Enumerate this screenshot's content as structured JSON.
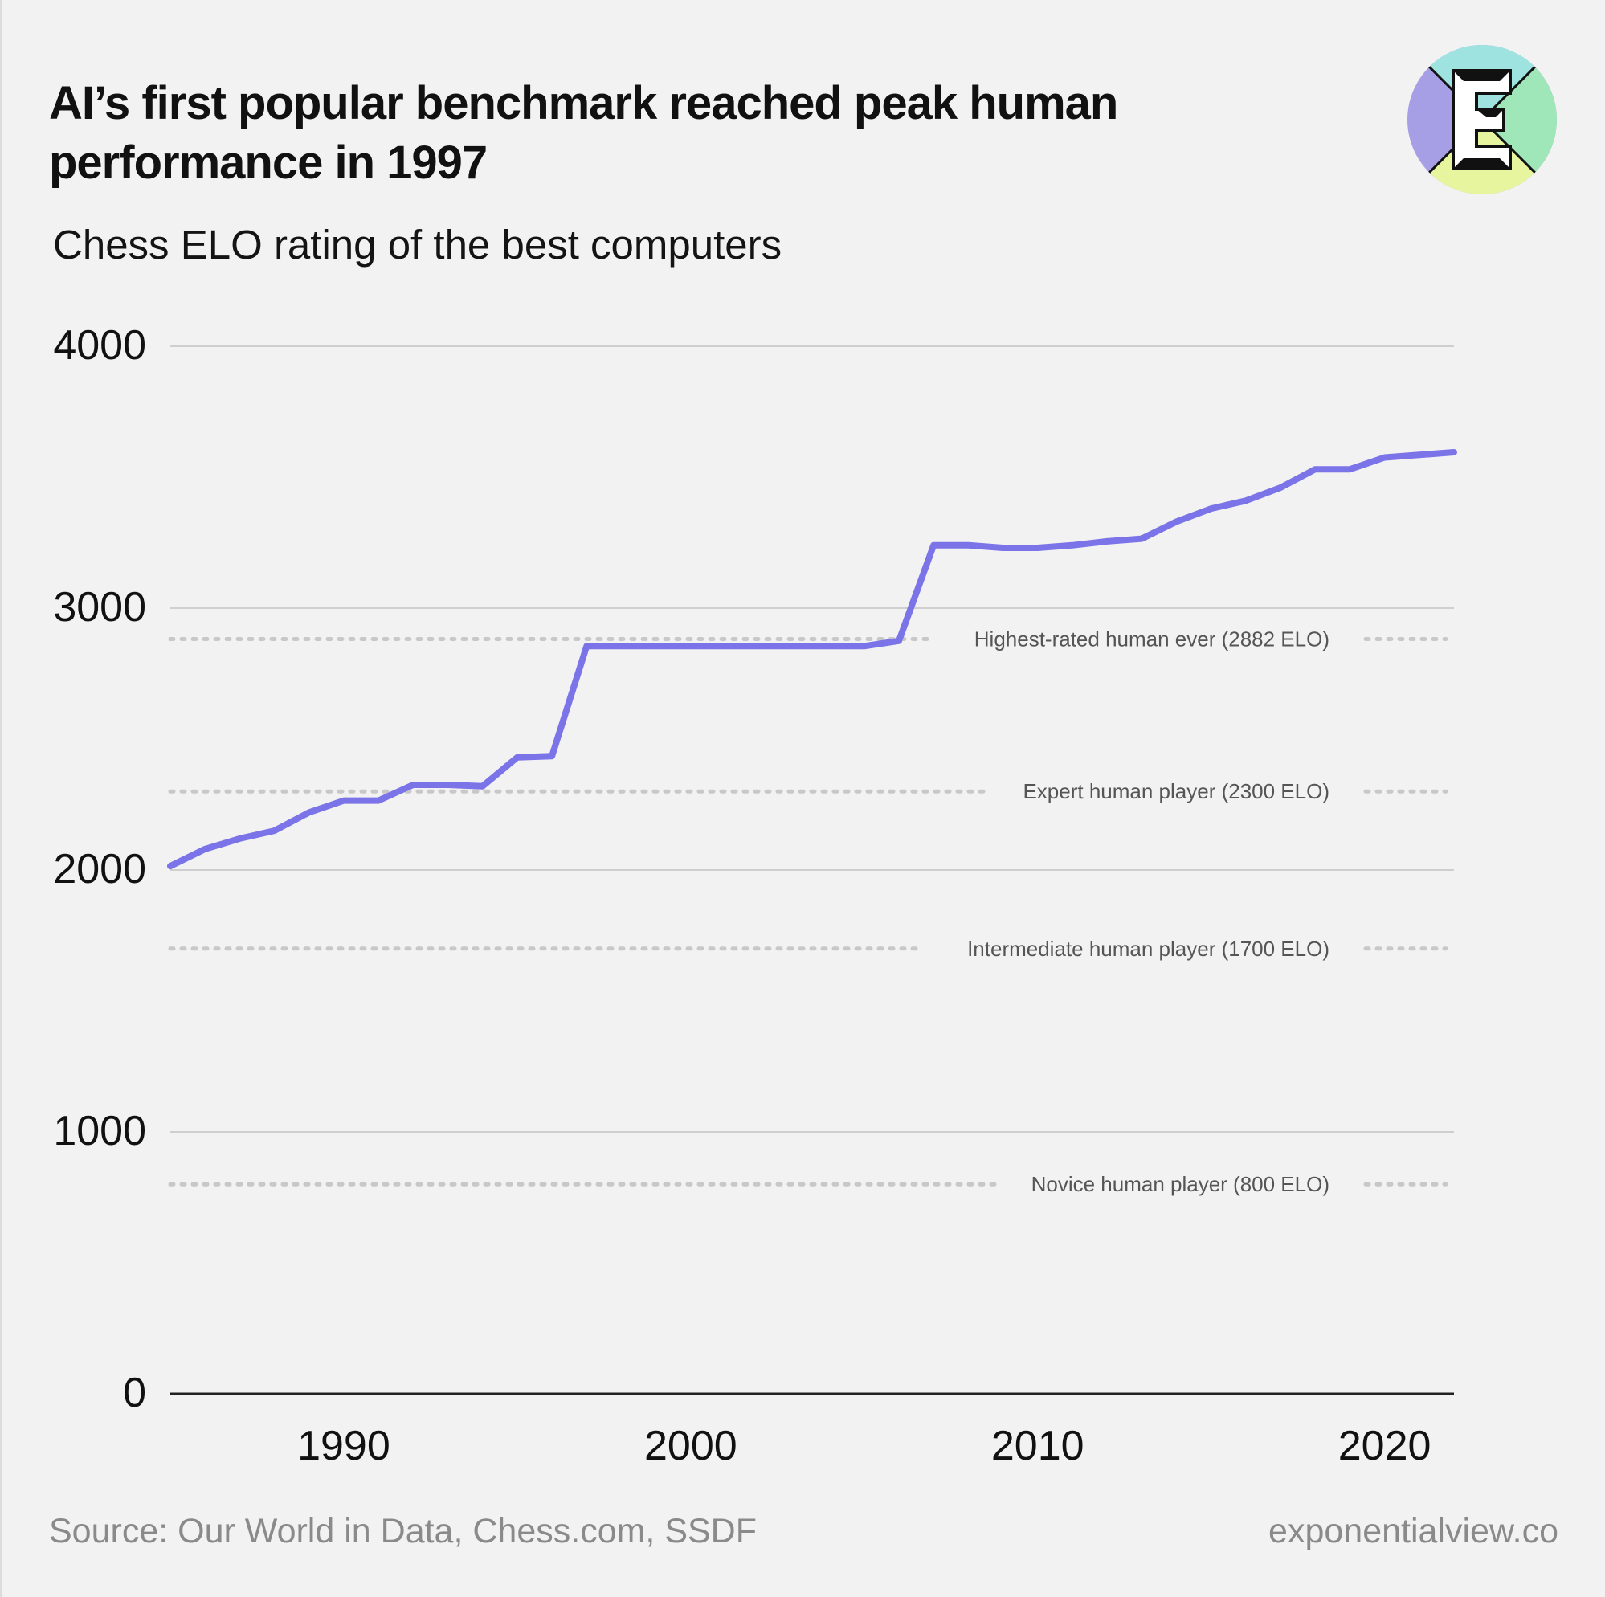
{
  "title": "AI’s first popular benchmark reached peak human performance in 1997",
  "subtitle": "Chess ELO rating of the best computers",
  "footer": {
    "source": "Source: Our World in Data, Chess.com, SSDF",
    "site": "exponentialview.co"
  },
  "logo": {
    "icon": "exponential-view-e-logo",
    "letter": "E"
  },
  "colors": {
    "line": "#7b73e8",
    "grid": "#cfcfcf",
    "reference": "#c8c8c8",
    "background": "#f2f2f2"
  },
  "chart_data": {
    "type": "line",
    "title": "AI’s first popular benchmark reached peak human performance in 1997",
    "subtitle": "Chess ELO rating of the best computers",
    "xlim": [
      1985,
      2022
    ],
    "ylim": [
      0,
      4000
    ],
    "y_ticks": [
      "0",
      "1000",
      "2000",
      "3000",
      "4000"
    ],
    "x_ticks": [
      "1990",
      "2000",
      "2010",
      "2020"
    ],
    "grid": true,
    "series": [
      {
        "x": [
          1985,
          1986,
          1987,
          1988,
          1989,
          1990,
          1991,
          1992,
          1993,
          1994,
          1995,
          1996,
          1997,
          1998,
          1999,
          2000,
          2001,
          2002,
          2003,
          2004,
          2005,
          2006,
          2007,
          2008,
          2009,
          2010,
          2011,
          2012,
          2013,
          2014,
          2015,
          2016,
          2017,
          2018,
          2019,
          2020,
          2021,
          2022
        ],
        "values": [
          2015,
          2080,
          2120,
          2150,
          2220,
          2265,
          2265,
          2325,
          2325,
          2320,
          2430,
          2435,
          2855,
          2855,
          2855,
          2855,
          2855,
          2855,
          2855,
          2855,
          2855,
          2875,
          3240,
          3240,
          3230,
          3230,
          3240,
          3255,
          3265,
          3330,
          3380,
          3410,
          3460,
          3530,
          3530,
          3575,
          3585,
          3595
        ]
      }
    ],
    "reference_lines": [
      {
        "value": 2882,
        "label": "Highest-rated human ever (2882 ELO)"
      },
      {
        "value": 2300,
        "label": "Expert human player (2300 ELO)"
      },
      {
        "value": 1700,
        "label": "Intermediate human player (1700 ELO)"
      },
      {
        "value": 800,
        "label": "Novice human player (800 ELO)"
      }
    ]
  }
}
